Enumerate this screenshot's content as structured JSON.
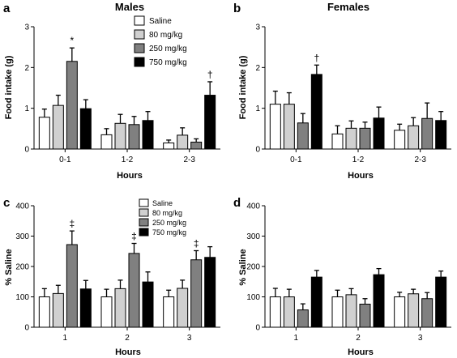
{
  "colors": {
    "saline": "#ffffff",
    "mg80": "#d0d0d0",
    "mg250": "#808080",
    "mg750": "#000000",
    "axis": "#000000"
  },
  "chart_data": [
    {
      "panel": "a",
      "type": "bar",
      "title": "Males",
      "xlabel": "Hours",
      "ylabel": "Food intake (g)",
      "ylim": [
        0,
        3
      ],
      "yticks": [
        "0",
        "1",
        "2",
        "3"
      ],
      "categories": [
        "0-1",
        "1-2",
        "2-3"
      ],
      "series": [
        {
          "name": "Saline",
          "values": [
            0.78,
            0.35,
            0.15
          ],
          "errors": [
            0.2,
            0.15,
            0.07
          ]
        },
        {
          "name": "80 mg/kg",
          "values": [
            1.07,
            0.63,
            0.34
          ],
          "errors": [
            0.25,
            0.22,
            0.18
          ]
        },
        {
          "name": "250 mg/kg",
          "values": [
            2.15,
            0.6,
            0.17
          ],
          "errors": [
            0.33,
            0.2,
            0.08
          ]
        },
        {
          "name": "750 mg/kg",
          "values": [
            0.99,
            0.7,
            1.32
          ],
          "errors": [
            0.22,
            0.22,
            0.33
          ]
        }
      ],
      "markers": [
        {
          "category": 0,
          "series": 2,
          "symbol": "*"
        },
        {
          "category": 2,
          "series": 3,
          "symbol": "†"
        }
      ],
      "legend": "top-right"
    },
    {
      "panel": "b",
      "type": "bar",
      "title": "Females",
      "xlabel": "Hours",
      "ylabel": "Food intake (g)",
      "ylim": [
        0,
        3
      ],
      "yticks": [
        "0",
        "1",
        "2",
        "3"
      ],
      "categories": [
        "0-1",
        "1-2",
        "2-3"
      ],
      "series": [
        {
          "name": "Saline",
          "values": [
            1.1,
            0.37,
            0.46
          ],
          "errors": [
            0.32,
            0.2,
            0.15
          ]
        },
        {
          "name": "80 mg/kg",
          "values": [
            1.1,
            0.51,
            0.57
          ],
          "errors": [
            0.28,
            0.18,
            0.2
          ]
        },
        {
          "name": "250 mg/kg",
          "values": [
            0.64,
            0.51,
            0.75
          ],
          "errors": [
            0.23,
            0.15,
            0.38
          ]
        },
        {
          "name": "750 mg/kg",
          "values": [
            1.83,
            0.76,
            0.7
          ],
          "errors": [
            0.23,
            0.27,
            0.22
          ]
        }
      ],
      "markers": [
        {
          "category": 0,
          "series": 3,
          "symbol": "†"
        }
      ]
    },
    {
      "panel": "c",
      "type": "bar",
      "title": "",
      "xlabel": "Hours",
      "ylabel": "% Saline",
      "ylim": [
        0,
        400
      ],
      "yticks": [
        "0",
        "100",
        "200",
        "300",
        "400"
      ],
      "categories": [
        "1",
        "2",
        "3"
      ],
      "series": [
        {
          "name": "Saline",
          "values": [
            100,
            100,
            100
          ],
          "errors": [
            27,
            25,
            22
          ]
        },
        {
          "name": "80 mg/kg",
          "values": [
            111,
            127,
            128
          ],
          "errors": [
            27,
            28,
            27
          ]
        },
        {
          "name": "250 mg/kg",
          "values": [
            272,
            243,
            222
          ],
          "errors": [
            45,
            33,
            30
          ]
        },
        {
          "name": "750 mg/kg",
          "values": [
            126,
            149,
            230
          ],
          "errors": [
            28,
            33,
            35
          ]
        }
      ],
      "markers": [
        {
          "category": 0,
          "series": 2,
          "symbol": "‡"
        },
        {
          "category": 1,
          "series": 2,
          "symbol": "‡"
        },
        {
          "category": 2,
          "series": 2,
          "symbol": "‡"
        }
      ],
      "legend": "top-left"
    },
    {
      "panel": "d",
      "type": "bar",
      "title": "",
      "xlabel": "Hours",
      "ylabel": "% Saline",
      "ylim": [
        0,
        400
      ],
      "yticks": [
        "0",
        "100",
        "200",
        "300",
        "400"
      ],
      "categories": [
        "1",
        "2",
        "3"
      ],
      "series": [
        {
          "name": "Saline",
          "values": [
            100,
            100,
            100
          ],
          "errors": [
            28,
            22,
            15
          ]
        },
        {
          "name": "80 mg/kg",
          "values": [
            100,
            107,
            110
          ],
          "errors": [
            25,
            20,
            15
          ]
        },
        {
          "name": "250 mg/kg",
          "values": [
            57,
            76,
            94
          ],
          "errors": [
            20,
            18,
            20
          ]
        },
        {
          "name": "750 mg/kg",
          "values": [
            165,
            173,
            165
          ],
          "errors": [
            22,
            20,
            20
          ]
        }
      ],
      "markers": []
    }
  ]
}
